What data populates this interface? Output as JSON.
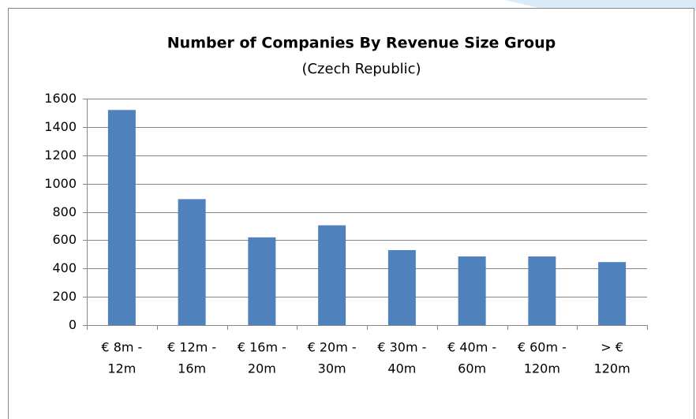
{
  "chart_data": {
    "type": "bar",
    "title": "Number of Companies By Revenue Size Group",
    "subtitle": "(Czech Republic)",
    "categories": [
      [
        "€ 8m -",
        "12m"
      ],
      [
        "€ 12m -",
        "16m"
      ],
      [
        "€ 16m -",
        "20m"
      ],
      [
        "€ 20m -",
        "30m"
      ],
      [
        "€ 30m -",
        "40m"
      ],
      [
        "€ 40m -",
        "60m"
      ],
      [
        "€ 60m -",
        "120m"
      ],
      [
        "> €",
        "120m"
      ]
    ],
    "values": [
      1520,
      890,
      620,
      705,
      530,
      485,
      485,
      445
    ],
    "color": "#4f81bd",
    "ylim": [
      0,
      1600
    ],
    "yticks": [
      0,
      200,
      400,
      600,
      800,
      1000,
      1200,
      1400,
      1600
    ],
    "grid": true
  }
}
